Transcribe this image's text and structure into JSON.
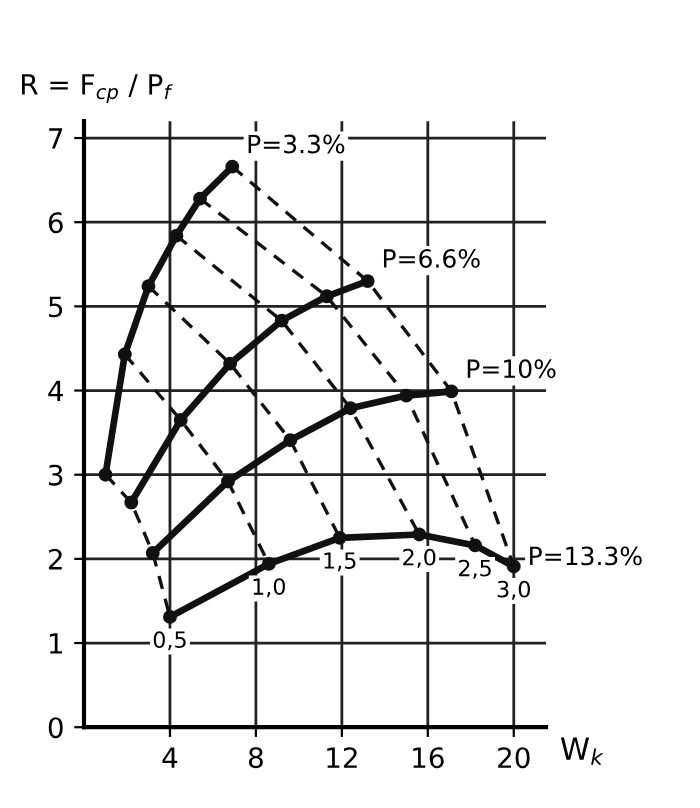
{
  "chart_data": {
    "type": "line",
    "xlabel": "W$_{k}$",
    "ylabel": "R = F$_{cp}$ / P$_{f}$",
    "xlim": [
      0,
      21.5
    ],
    "ylim": [
      0,
      7.2
    ],
    "xticks": [
      4,
      8,
      12,
      16,
      20
    ],
    "yticks": [
      0,
      1,
      2,
      3,
      4,
      5,
      6,
      7
    ],
    "grid": true,
    "marker": "circle",
    "line_style": "solid",
    "series": [
      {
        "name": "P=3.3%",
        "color": "#111111",
        "x": [
          1.0,
          1.9,
          3.0,
          4.3,
          5.4,
          6.9
        ],
        "values": [
          3.0,
          4.43,
          5.24,
          5.84,
          6.28,
          6.66
        ]
      },
      {
        "name": "P=6.6%",
        "color": "#111111",
        "x": [
          2.2,
          4.5,
          6.8,
          9.2,
          11.3,
          13.2
        ],
        "values": [
          2.67,
          3.65,
          4.32,
          4.83,
          5.12,
          5.3
        ]
      },
      {
        "name": "P=10%",
        "color": "#111111",
        "x": [
          3.2,
          6.7,
          9.6,
          12.4,
          15.0,
          17.1
        ],
        "values": [
          2.07,
          2.92,
          3.41,
          3.79,
          3.94,
          3.99
        ]
      },
      {
        "name": "P=13.3%",
        "color": "#111111",
        "x": [
          4.0,
          8.6,
          11.9,
          15.6,
          18.2,
          20.0
        ],
        "values": [
          1.31,
          1.94,
          2.25,
          2.29,
          2.16,
          1.91
        ]
      },
      {
        "color": "#111111",
        "line_style": "dashed",
        "marker": "none",
        "x": [
          1.0,
          2.2,
          3.2,
          4.0
        ],
        "values": [
          3.0,
          2.67,
          2.07,
          1.31
        ]
      },
      {
        "color": "#111111",
        "line_style": "dashed",
        "marker": "none",
        "x": [
          1.9,
          4.5,
          6.7,
          8.6
        ],
        "values": [
          4.43,
          3.65,
          2.92,
          1.94
        ]
      },
      {
        "color": "#111111",
        "line_style": "dashed",
        "marker": "none",
        "x": [
          3.0,
          6.8,
          9.6,
          11.9
        ],
        "values": [
          5.24,
          4.32,
          3.41,
          2.25
        ]
      },
      {
        "color": "#111111",
        "line_style": "dashed",
        "marker": "none",
        "x": [
          4.3,
          9.2,
          12.4,
          15.6
        ],
        "values": [
          5.84,
          4.83,
          3.79,
          2.29
        ]
      },
      {
        "color": "#111111",
        "line_style": "dashed",
        "marker": "none",
        "x": [
          5.4,
          11.3,
          15.0,
          18.2
        ],
        "values": [
          6.28,
          5.12,
          3.94,
          2.16
        ]
      },
      {
        "color": "#111111",
        "line_style": "dashed",
        "marker": "none",
        "x": [
          6.9,
          13.2,
          17.1,
          20.0
        ],
        "values": [
          6.66,
          5.3,
          3.99,
          1.91
        ]
      }
    ],
    "annotations": [
      {
        "text": "0,5",
        "x": 4.0,
        "y": 1.31
      },
      {
        "text": "1,0",
        "x": 8.6,
        "y": 1.94
      },
      {
        "text": "1,5",
        "x": 11.9,
        "y": 2.25
      },
      {
        "text": "2,0",
        "x": 15.6,
        "y": 2.29
      },
      {
        "text": "2,5",
        "x": 18.2,
        "y": 2.16
      },
      {
        "text": "3,0",
        "x": 20.0,
        "y": 1.91
      }
    ]
  }
}
